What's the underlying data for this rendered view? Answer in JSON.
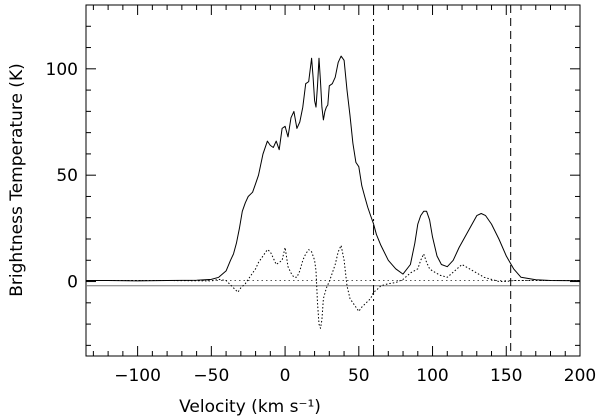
{
  "chart_data": {
    "type": "line",
    "xlabel": "Velocity (km s⁻¹)",
    "ylabel": "Brightness Temperature (K)",
    "xlim": [
      -135,
      200
    ],
    "ylim": [
      -35,
      130
    ],
    "x_ticks": [
      -100,
      -50,
      0,
      50,
      100,
      150,
      200
    ],
    "x_tick_labels": [
      "−100",
      "−50",
      "0",
      "50",
      "100",
      "150",
      "200"
    ],
    "y_ticks": [
      0,
      50,
      100
    ],
    "y_tick_labels": [
      "0",
      "50",
      "100"
    ],
    "grid": false,
    "legend": "none",
    "vertical_markers": [
      {
        "x": 60,
        "style": "dash-dot"
      },
      {
        "x": 153,
        "style": "dashed"
      }
    ],
    "baselines": [
      {
        "y": -2,
        "style": "solid-gray"
      },
      {
        "y": 0.5,
        "style": "dotted"
      }
    ],
    "series": [
      {
        "style": "solid",
        "x": [
          -135,
          -120,
          -100,
          -80,
          -60,
          -50,
          -45,
          -40,
          -37,
          -35,
          -33,
          -31,
          -29,
          -27,
          -25,
          -22,
          -20,
          -18,
          -15,
          -12,
          -10,
          -8,
          -6,
          -4,
          -2,
          0,
          2,
          4,
          6,
          8,
          10,
          12,
          14,
          16,
          18,
          19,
          20,
          21,
          22,
          23,
          24,
          25,
          26,
          27,
          28,
          29,
          30,
          32,
          34,
          36,
          38,
          40,
          42,
          44,
          46,
          48,
          50,
          52,
          54,
          56,
          58,
          60,
          62,
          65,
          70,
          75,
          80,
          85,
          88,
          90,
          92,
          94,
          96,
          98,
          100,
          103,
          106,
          110,
          114,
          118,
          122,
          126,
          130,
          133,
          136,
          140,
          145,
          150,
          155,
          160,
          170,
          180,
          200
        ],
        "y": [
          0.5,
          0.5,
          0.3,
          0.5,
          0.6,
          1,
          2,
          5,
          10,
          13,
          18,
          25,
          33,
          37,
          40,
          42,
          46,
          50,
          60,
          66,
          64,
          63,
          66,
          62,
          72,
          73,
          68,
          77,
          80,
          72,
          75,
          82,
          93,
          94,
          105,
          96,
          85,
          82,
          92,
          105,
          94,
          82,
          76,
          80,
          82,
          83,
          92,
          93,
          96,
          103,
          106,
          104,
          90,
          78,
          65,
          56,
          54,
          45,
          40,
          35,
          31,
          27,
          22,
          17,
          10,
          6,
          3.5,
          8,
          18,
          27,
          31,
          33,
          33,
          29,
          21,
          12,
          8,
          7,
          10,
          16,
          21,
          26,
          31,
          32,
          31,
          27,
          20,
          12,
          6,
          2,
          0.8,
          0.5,
          0.4
        ]
      },
      {
        "style": "dotted",
        "x": [
          -135,
          -80,
          -50,
          -45,
          -40,
          -35,
          -32,
          -30,
          -27,
          -25,
          -22,
          -20,
          -18,
          -15,
          -12,
          -10,
          -8,
          -6,
          -4,
          -2,
          0,
          2,
          4,
          6,
          8,
          10,
          12,
          14,
          16,
          18,
          20,
          21,
          22,
          23,
          24,
          25,
          26,
          28,
          30,
          32,
          34,
          36,
          38,
          40,
          42,
          44,
          46,
          48,
          50,
          52,
          55,
          58,
          60,
          62,
          65,
          70,
          75,
          80,
          85,
          90,
          92,
          94,
          96,
          98,
          100,
          105,
          110,
          115,
          120,
          125,
          130,
          135,
          140,
          145,
          150,
          155,
          160,
          170,
          200
        ],
        "y": [
          0.5,
          0.5,
          0.3,
          1,
          0.5,
          -3,
          -5,
          -3,
          -1,
          1,
          4,
          6,
          9,
          12,
          15,
          14,
          11,
          8,
          9,
          10,
          16,
          7,
          4,
          2,
          2,
          5,
          10,
          13,
          15,
          14,
          10,
          5,
          -10,
          -20,
          -22,
          -18,
          -8,
          -3,
          0,
          4,
          8,
          14,
          17,
          10,
          -2,
          -8,
          -10,
          -12,
          -14,
          -12,
          -10,
          -8,
          -5,
          -4,
          -2,
          -1,
          -0.5,
          1,
          4,
          6,
          10,
          13,
          9,
          6,
          5,
          3,
          2,
          5,
          8,
          6,
          4,
          2,
          1,
          0,
          0,
          0.5,
          0.5,
          0.5,
          0.5
        ]
      }
    ]
  }
}
